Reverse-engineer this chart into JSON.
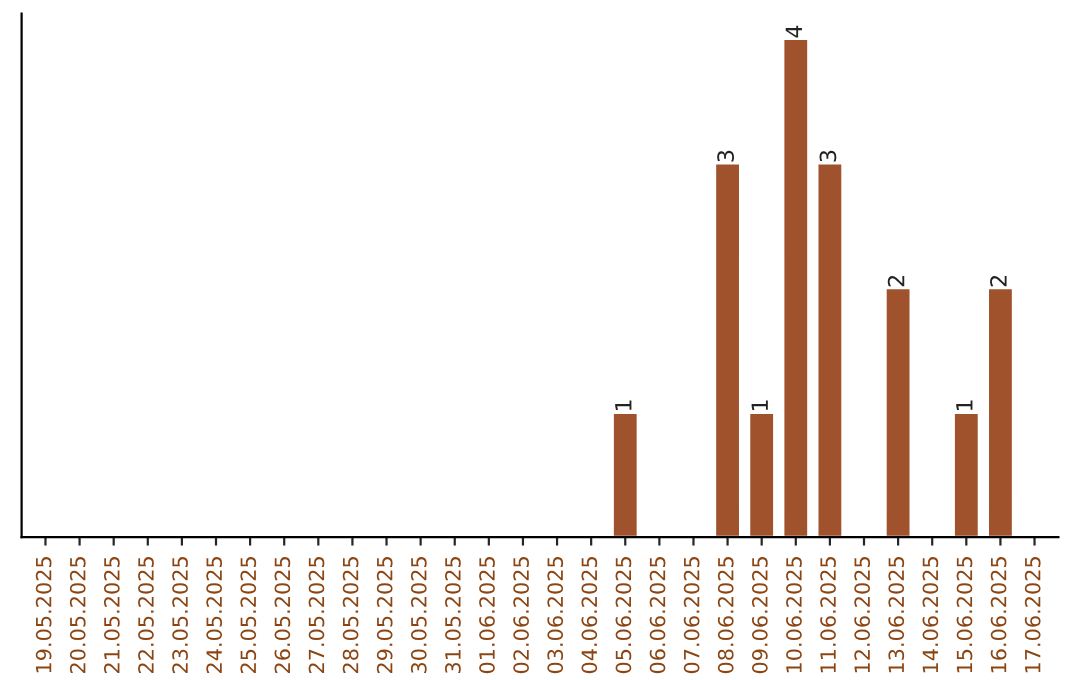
{
  "chart_data": {
    "type": "bar",
    "categories": [
      "19.05.2025",
      "20.05.2025",
      "21.05.2025",
      "22.05.2025",
      "23.05.2025",
      "24.05.2025",
      "25.05.2025",
      "26.05.2025",
      "27.05.2025",
      "28.05.2025",
      "29.05.2025",
      "30.05.2025",
      "31.05.2025",
      "01.06.2025",
      "02.06.2025",
      "03.06.2025",
      "04.06.2025",
      "05.06.2025",
      "06.06.2025",
      "07.06.2025",
      "08.06.2025",
      "09.06.2025",
      "10.06.2025",
      "11.06.2025",
      "12.06.2025",
      "13.06.2025",
      "14.06.2025",
      "15.06.2025",
      "16.06.2025",
      "17.06.2025"
    ],
    "values": [
      null,
      null,
      null,
      null,
      null,
      null,
      null,
      null,
      null,
      null,
      null,
      null,
      null,
      null,
      null,
      null,
      null,
      1,
      null,
      null,
      3,
      1,
      4,
      3,
      null,
      2,
      null,
      1,
      2,
      null
    ],
    "data_labels": true,
    "color": "#a0522d",
    "grid": false,
    "legend": false
  }
}
